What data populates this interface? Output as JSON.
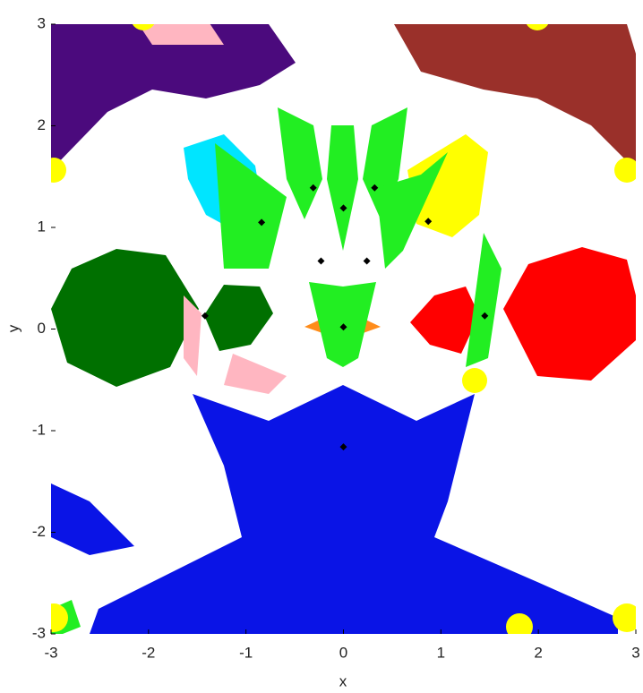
{
  "chart_data": {
    "type": "scatter",
    "xlabel": "x",
    "ylabel": "y",
    "x": [
      -0.31,
      0.32,
      0,
      -0.84,
      0.87,
      -0.23,
      0.24,
      -1.42,
      1.45,
      0,
      0
    ],
    "values": [
      1.39,
      1.39,
      1.19,
      1.05,
      1.06,
      0.67,
      0.67,
      0.13,
      0.13,
      0.02,
      -1.16
    ],
    "color": "#000000",
    "xlim": [
      -3,
      3
    ],
    "ylim": [
      -3,
      3
    ],
    "xticks": [
      -3,
      -2,
      -1,
      0,
      1,
      2,
      3
    ],
    "yticks": [
      -3,
      -2,
      -1,
      0,
      1,
      2,
      3
    ]
  }
}
